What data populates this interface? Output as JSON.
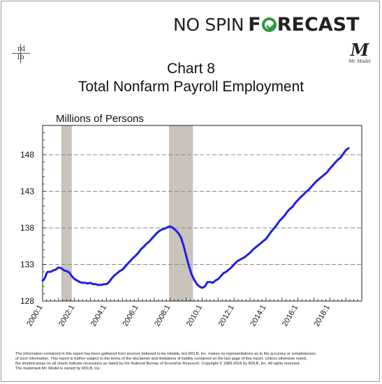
{
  "brand": {
    "part1": "NO SPIN",
    "part2_prefix": "F",
    "part2_suffix": "RECAST",
    "rdlb": {
      "top": "rd",
      "bottom": "lb"
    },
    "mr_model_mark": "M",
    "mr_model_label": "Mr. Model"
  },
  "colors": {
    "series": "#1f1fe6",
    "recession": "#c9c3bc",
    "brand_green": "#2e9a3d"
  },
  "chart_data": {
    "type": "line",
    "title": "Chart 8",
    "subtitle": "Total Nonfarm Payroll Employment",
    "ylabel": "Millions of Persons",
    "xlabel": "",
    "ylim": [
      128,
      152
    ],
    "xlim": [
      2000.0,
      2020.0
    ],
    "yticks": [
      128,
      133,
      138,
      143,
      148
    ],
    "xtick_labels": [
      "2000:1",
      "2002:1",
      "2004:1",
      "2006:1",
      "2008:1",
      "2010:1",
      "2012:1",
      "2014:1",
      "2016:1",
      "2018:1"
    ],
    "xtick_values": [
      2000.0,
      2002.0,
      2004.0,
      2006.0,
      2008.0,
      2010.0,
      2012.0,
      2014.0,
      2016.0,
      2018.0
    ],
    "recessions": [
      [
        2001.17,
        2001.83
      ],
      [
        2007.92,
        2009.42
      ]
    ],
    "grid": true,
    "series": [
      {
        "points": [
          [
            2000.0,
            130.8
          ],
          [
            2000.08,
            130.9
          ],
          [
            2000.17,
            131.3
          ],
          [
            2000.25,
            131.8
          ],
          [
            2000.33,
            132.0
          ],
          [
            2000.5,
            132.0
          ],
          [
            2000.67,
            132.2
          ],
          [
            2000.83,
            132.3
          ],
          [
            2001.0,
            132.6
          ],
          [
            2001.17,
            132.5
          ],
          [
            2001.33,
            132.2
          ],
          [
            2001.5,
            132.1
          ],
          [
            2001.67,
            131.9
          ],
          [
            2001.83,
            131.4
          ],
          [
            2002.0,
            131.0
          ],
          [
            2002.17,
            130.8
          ],
          [
            2002.33,
            130.6
          ],
          [
            2002.5,
            130.5
          ],
          [
            2002.67,
            130.5
          ],
          [
            2002.83,
            130.4
          ],
          [
            2003.0,
            130.5
          ],
          [
            2003.17,
            130.3
          ],
          [
            2003.33,
            130.3
          ],
          [
            2003.5,
            130.2
          ],
          [
            2003.67,
            130.2
          ],
          [
            2003.83,
            130.3
          ],
          [
            2004.0,
            130.3
          ],
          [
            2004.17,
            130.6
          ],
          [
            2004.33,
            131.1
          ],
          [
            2004.5,
            131.5
          ],
          [
            2004.67,
            131.8
          ],
          [
            2004.83,
            132.1
          ],
          [
            2005.0,
            132.3
          ],
          [
            2005.17,
            132.7
          ],
          [
            2005.33,
            133.1
          ],
          [
            2005.5,
            133.5
          ],
          [
            2005.67,
            133.9
          ],
          [
            2005.83,
            134.2
          ],
          [
            2006.0,
            134.6
          ],
          [
            2006.17,
            135.1
          ],
          [
            2006.33,
            135.4
          ],
          [
            2006.5,
            135.8
          ],
          [
            2006.67,
            136.1
          ],
          [
            2006.83,
            136.5
          ],
          [
            2007.0,
            136.9
          ],
          [
            2007.17,
            137.3
          ],
          [
            2007.33,
            137.6
          ],
          [
            2007.5,
            137.8
          ],
          [
            2007.67,
            137.9
          ],
          [
            2007.83,
            138.1
          ],
          [
            2008.0,
            138.2
          ],
          [
            2008.17,
            138.0
          ],
          [
            2008.33,
            137.7
          ],
          [
            2008.5,
            137.3
          ],
          [
            2008.67,
            136.7
          ],
          [
            2008.83,
            135.6
          ],
          [
            2009.0,
            134.2
          ],
          [
            2009.17,
            132.8
          ],
          [
            2009.33,
            131.7
          ],
          [
            2009.5,
            130.9
          ],
          [
            2009.67,
            130.3
          ],
          [
            2009.83,
            130.0
          ],
          [
            2010.0,
            129.8
          ],
          [
            2010.17,
            130.0
          ],
          [
            2010.33,
            130.6
          ],
          [
            2010.5,
            130.6
          ],
          [
            2010.67,
            130.5
          ],
          [
            2010.83,
            130.8
          ],
          [
            2011.0,
            131.0
          ],
          [
            2011.17,
            131.4
          ],
          [
            2011.33,
            131.8
          ],
          [
            2011.5,
            132.0
          ],
          [
            2011.67,
            132.3
          ],
          [
            2011.83,
            132.6
          ],
          [
            2012.0,
            133.0
          ],
          [
            2012.17,
            133.4
          ],
          [
            2012.33,
            133.6
          ],
          [
            2012.5,
            133.8
          ],
          [
            2012.67,
            134.0
          ],
          [
            2012.83,
            134.3
          ],
          [
            2013.0,
            134.6
          ],
          [
            2013.17,
            135.0
          ],
          [
            2013.33,
            135.3
          ],
          [
            2013.5,
            135.6
          ],
          [
            2013.67,
            135.9
          ],
          [
            2013.83,
            136.2
          ],
          [
            2014.0,
            136.5
          ],
          [
            2014.17,
            137.0
          ],
          [
            2014.33,
            137.5
          ],
          [
            2014.5,
            137.9
          ],
          [
            2014.67,
            138.4
          ],
          [
            2014.83,
            138.9
          ],
          [
            2015.0,
            139.3
          ],
          [
            2015.17,
            139.7
          ],
          [
            2015.33,
            140.2
          ],
          [
            2015.5,
            140.6
          ],
          [
            2015.67,
            140.9
          ],
          [
            2015.83,
            141.4
          ],
          [
            2016.0,
            141.8
          ],
          [
            2016.17,
            142.2
          ],
          [
            2016.33,
            142.5
          ],
          [
            2016.5,
            142.9
          ],
          [
            2016.67,
            143.2
          ],
          [
            2016.83,
            143.6
          ],
          [
            2017.0,
            144.0
          ],
          [
            2017.17,
            144.4
          ],
          [
            2017.33,
            144.7
          ],
          [
            2017.5,
            145.0
          ],
          [
            2017.67,
            145.3
          ],
          [
            2017.83,
            145.6
          ],
          [
            2018.0,
            146.1
          ],
          [
            2018.17,
            146.5
          ],
          [
            2018.33,
            146.9
          ],
          [
            2018.5,
            147.3
          ],
          [
            2018.67,
            147.6
          ],
          [
            2018.83,
            148.1
          ],
          [
            2019.0,
            148.6
          ],
          [
            2019.17,
            148.9
          ]
        ]
      }
    ]
  },
  "disclaimer": [
    "The information contained in this report has been gathered from sources believed to be reliable, but RDLB, Inc. makes no representations as to the accuracy or completeness",
    "of such information. This report is further subject to the terms of the disclaimer and limitations of liability contained on the last page of this report. Unless otherwise noted,",
    "the shaded areas on all charts indicate recessions as dated by the National Bureau of Economic Research. Copyright © 1989-2018 by RDLB, Inc. All rights reserved.",
    "The trademark Mr. Model is owned by RDLB, Inc."
  ]
}
